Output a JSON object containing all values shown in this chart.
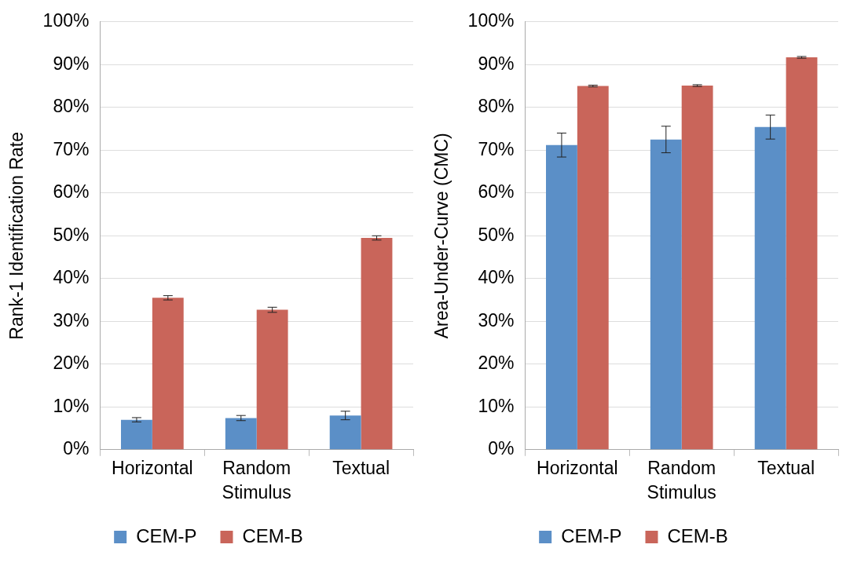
{
  "chart_data": [
    {
      "type": "bar",
      "ylabel": "Rank-1 Identification Rate",
      "xlabel": "Stimulus",
      "categories": [
        "Horizontal",
        "Random",
        "Textual"
      ],
      "series": [
        {
          "name": "CEM-P",
          "color": "#5b8fc7",
          "values": [
            7.0,
            7.4,
            8.0
          ],
          "errors": [
            0.5,
            0.6,
            1.0
          ]
        },
        {
          "name": "CEM-B",
          "color": "#c9655a",
          "values": [
            35.5,
            32.7,
            49.5
          ],
          "errors": [
            0.5,
            0.6,
            0.5
          ]
        }
      ],
      "ylim": [
        0,
        100
      ],
      "yticks": [
        {
          "value": 0,
          "label": "0%"
        },
        {
          "value": 10,
          "label": "10%"
        },
        {
          "value": 20,
          "label": "20%"
        },
        {
          "value": 30,
          "label": "30%"
        },
        {
          "value": 40,
          "label": "40%"
        },
        {
          "value": 50,
          "label": "50%"
        },
        {
          "value": 60,
          "label": "60%"
        },
        {
          "value": 70,
          "label": "70%"
        },
        {
          "value": 80,
          "label": "80%"
        },
        {
          "value": 90,
          "label": "90%"
        },
        {
          "value": 100,
          "label": "100%"
        }
      ],
      "grid": "y",
      "legend": "bottom"
    },
    {
      "type": "bar",
      "ylabel": "Area-Under-Curve (CMC)",
      "xlabel": "Stimulus",
      "categories": [
        "Horizontal",
        "Random",
        "Textual"
      ],
      "series": [
        {
          "name": "CEM-P",
          "color": "#5b8fc7",
          "values": [
            71.2,
            72.5,
            75.4
          ],
          "errors": [
            2.8,
            3.1,
            2.8
          ]
        },
        {
          "name": "CEM-B",
          "color": "#c9655a",
          "values": [
            85.0,
            85.1,
            91.7
          ],
          "errors": [
            0.2,
            0.2,
            0.2
          ]
        }
      ],
      "ylim": [
        0,
        100
      ],
      "yticks": [
        {
          "value": 0,
          "label": "0%"
        },
        {
          "value": 10,
          "label": "10%"
        },
        {
          "value": 20,
          "label": "20%"
        },
        {
          "value": 30,
          "label": "30%"
        },
        {
          "value": 40,
          "label": "40%"
        },
        {
          "value": 50,
          "label": "50%"
        },
        {
          "value": 60,
          "label": "60%"
        },
        {
          "value": 70,
          "label": "70%"
        },
        {
          "value": 80,
          "label": "80%"
        },
        {
          "value": 90,
          "label": "90%"
        },
        {
          "value": 100,
          "label": "100%"
        }
      ],
      "grid": "y",
      "legend": "bottom"
    }
  ]
}
